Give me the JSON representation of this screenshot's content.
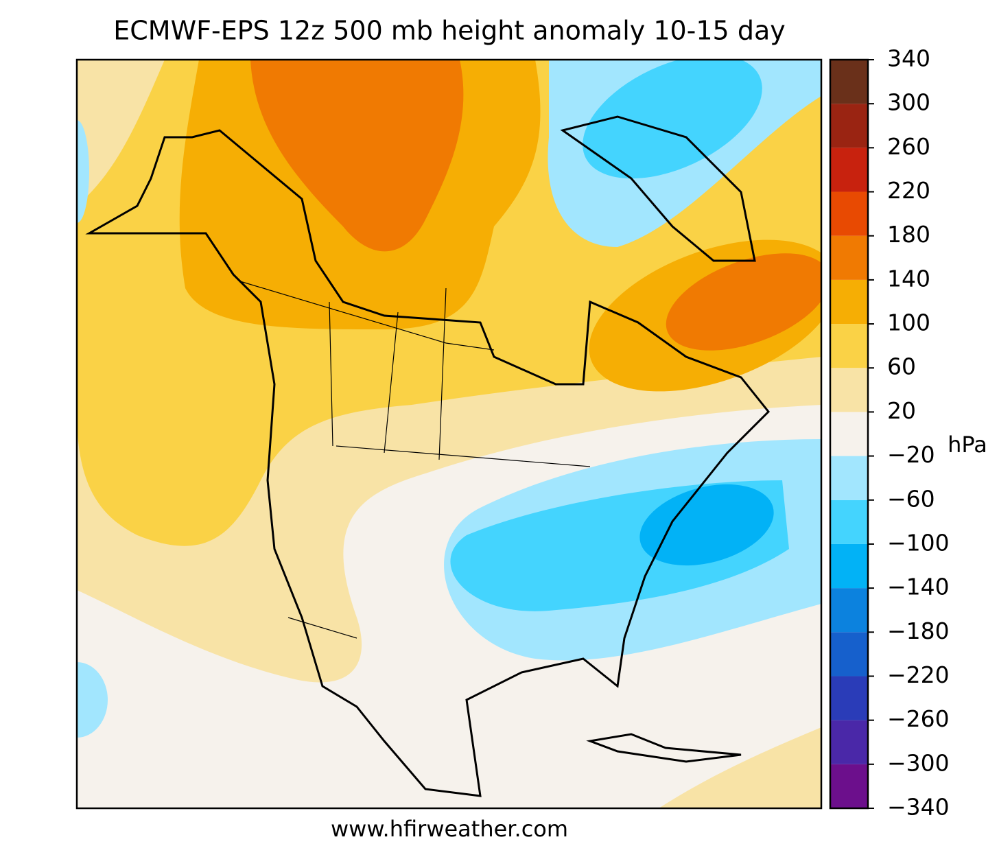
{
  "title": "ECMWF-EPS 12z 500 mb height anomaly 10-15 day",
  "footer": "www.hfirweather.com",
  "colorbar": {
    "unit": "hPa",
    "lim": [
      -340,
      340
    ],
    "ticks": [
      {
        "value": -340,
        "label": "−340"
      },
      {
        "value": -300,
        "label": "−300"
      },
      {
        "value": -260,
        "label": "−260"
      },
      {
        "value": -220,
        "label": "−220"
      },
      {
        "value": -180,
        "label": "−180"
      },
      {
        "value": -140,
        "label": "−140"
      },
      {
        "value": -100,
        "label": "−100"
      },
      {
        "value": -60,
        "label": "−60"
      },
      {
        "value": -20,
        "label": "−20"
      },
      20,
      60,
      100,
      140,
      180,
      220,
      260,
      300,
      340
    ],
    "colors": [
      "#6c0f8c",
      "#4a28a8",
      "#2a3cb8",
      "#1660cc",
      "#0c82de",
      "#02b2f6",
      "#44d4fe",
      "#a2e6fe",
      "#f6f2ec",
      "#f8e3a6",
      "#fad246",
      "#f6ae04",
      "#f07a02",
      "#e84a02",
      "#c8220e",
      "#9a2412",
      "#6a301a"
    ]
  }
}
